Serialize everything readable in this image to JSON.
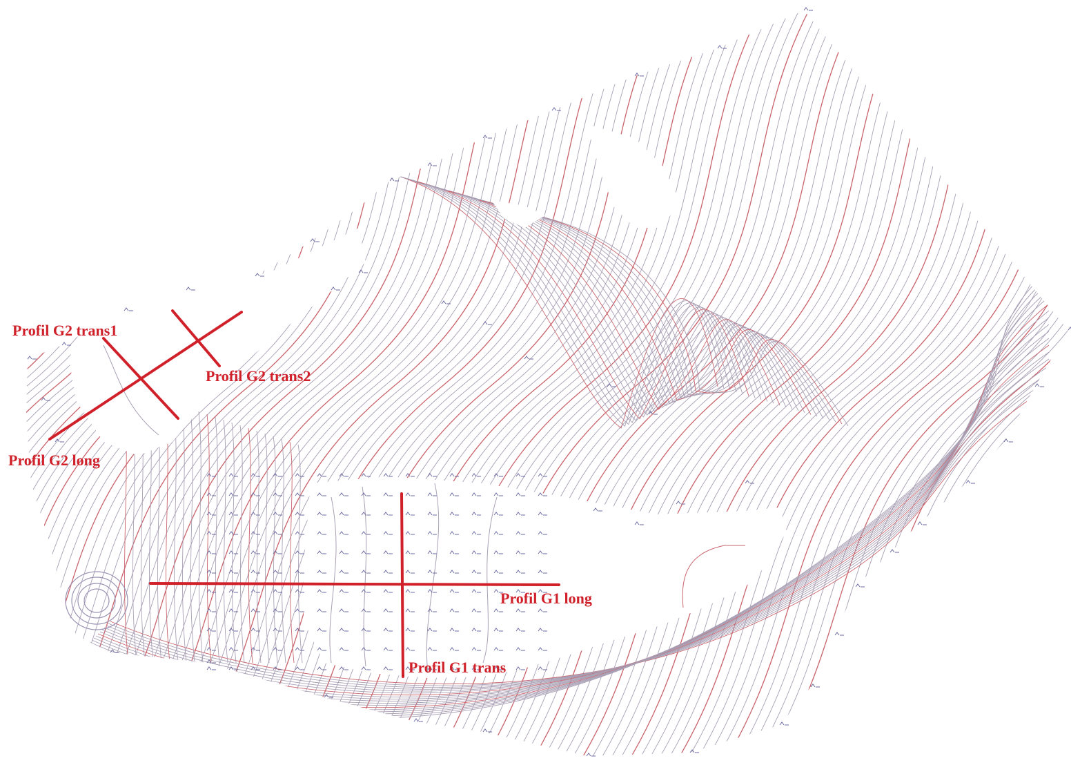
{
  "map": {
    "profile_color": "#d0202a",
    "contour_grey": "#a89fb4",
    "contour_red": "#c9636b",
    "marker_color": "#6a6aa0"
  },
  "profiles": {
    "g2_trans1": {
      "label": "Profil G2 trans1"
    },
    "g2_trans2": {
      "label": "Profil G2 trans2"
    },
    "g2_long": {
      "label": "Profil G2 long"
    },
    "g1_long": {
      "label": "Profil G1 long"
    },
    "g1_trans": {
      "label": "Profil G1 trans"
    }
  }
}
